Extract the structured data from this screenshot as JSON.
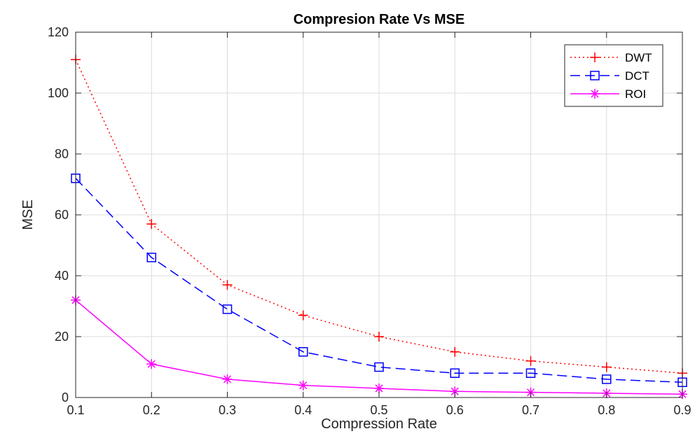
{
  "chart_data": {
    "type": "line",
    "title": "Compresion Rate Vs MSE",
    "xlabel": "Compression Rate",
    "ylabel": "MSE",
    "xlim": [
      0.1,
      0.9
    ],
    "ylim": [
      0,
      120
    ],
    "x": [
      0.1,
      0.2,
      0.3,
      0.4,
      0.5,
      0.6,
      0.7,
      0.8,
      0.9
    ],
    "x_ticks": [
      "0.1",
      "0.2",
      "0.3",
      "0.4",
      "0.5",
      "0.6",
      "0.7",
      "0.8",
      "0.9"
    ],
    "y_ticks": [
      "0",
      "20",
      "40",
      "60",
      "80",
      "100",
      "120"
    ],
    "grid": true,
    "legend_position": "top-right",
    "series": [
      {
        "name": "DWT",
        "values": [
          111,
          57,
          37,
          27,
          20,
          15,
          12,
          10,
          8
        ],
        "color": "#ff0000",
        "line_style": "dotted",
        "marker": "plus"
      },
      {
        "name": "DCT",
        "values": [
          72,
          46,
          29,
          15,
          10,
          8,
          8,
          6,
          5
        ],
        "color": "#0000ff",
        "line_style": "dashed",
        "marker": "square"
      },
      {
        "name": "ROI",
        "values": [
          32,
          11,
          6,
          4,
          3,
          2,
          1.7,
          1.4,
          1.1
        ],
        "color": "#ff00ff",
        "line_style": "solid",
        "marker": "asterisk"
      }
    ]
  }
}
